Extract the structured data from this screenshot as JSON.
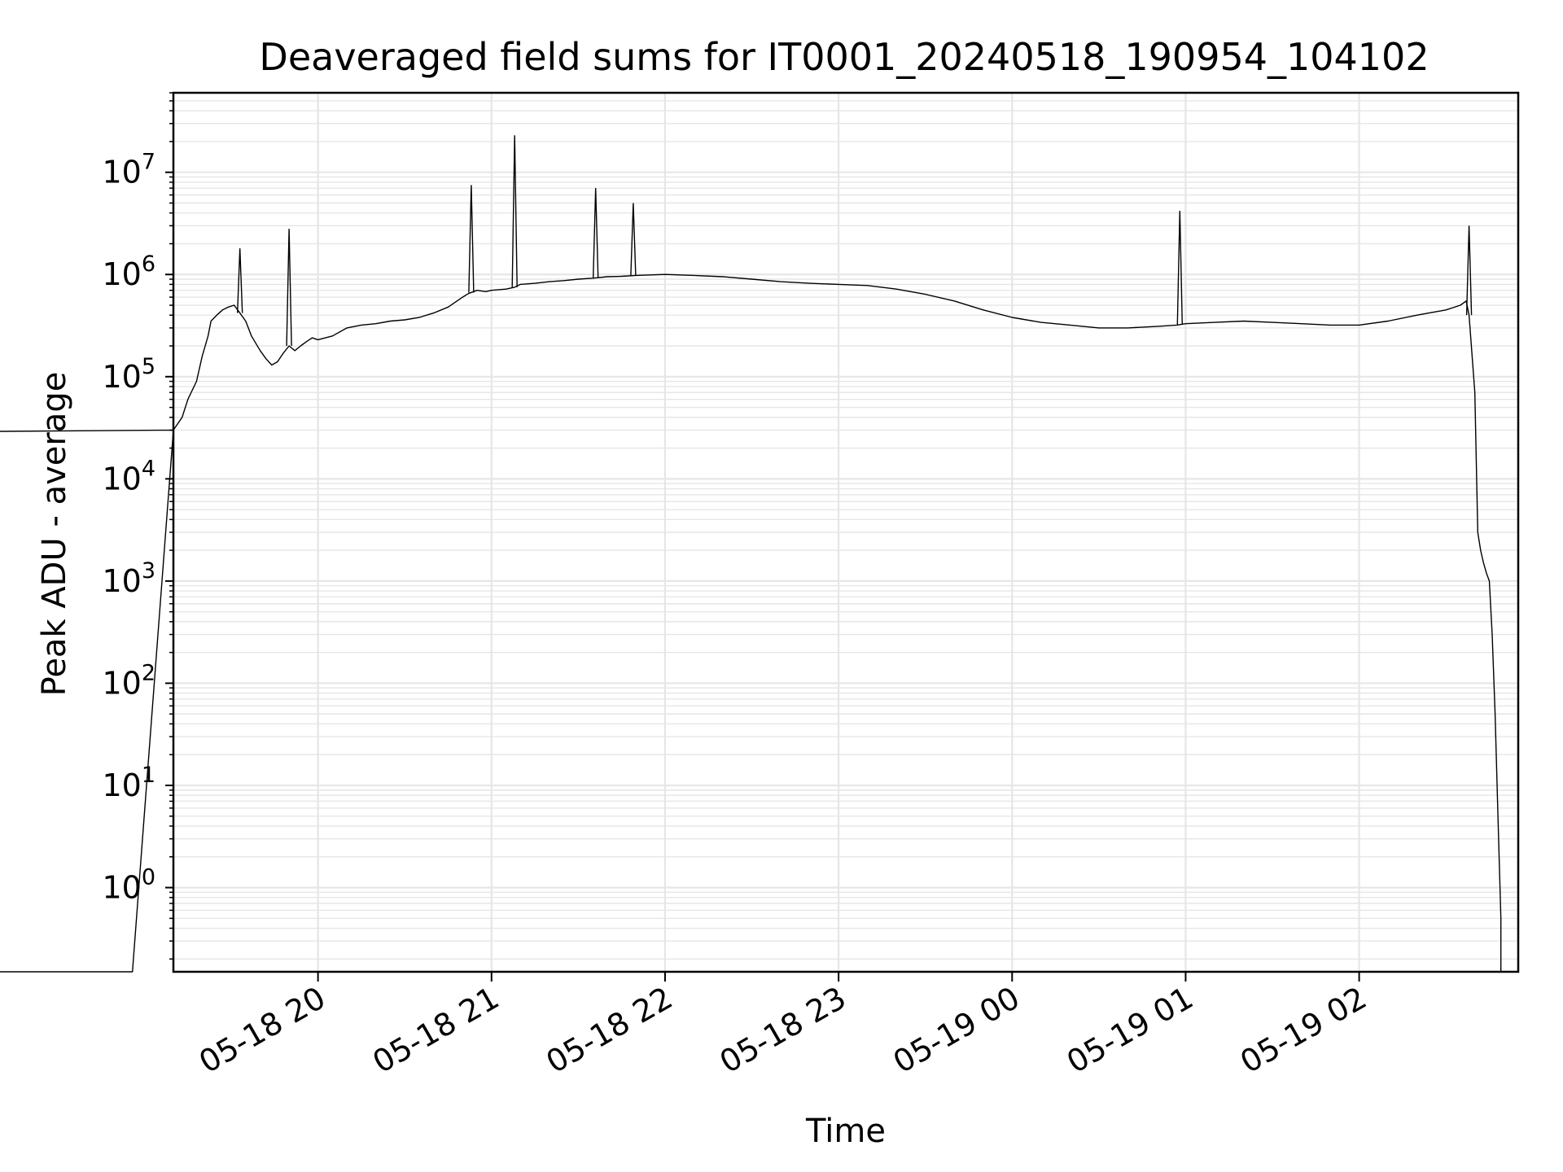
{
  "chart_data": {
    "type": "line",
    "title": "Deaveraged field sums for IT0001_20240518_190954_104102",
    "xlabel": "Time",
    "ylabel": "Peak ADU - average",
    "yscale": "log",
    "grid": "on",
    "line_color": "#000000",
    "grid_color": "#e6e6e6",
    "x_axis": {
      "range": [
        "05-18 19:10",
        "05-19 02:55"
      ],
      "ticks": [
        "05-18 20:00",
        "05-18 21:00",
        "05-18 22:00",
        "05-18 23:00",
        "05-19 00:00",
        "05-19 01:00",
        "05-19 02:00"
      ],
      "tick_labels": [
        "05-18 20",
        "05-18 21",
        "05-18 22",
        "05-18 23",
        "05-19 00",
        "05-19 01",
        "05-19 02"
      ]
    },
    "y_axis": {
      "range": [
        0.15,
        60000000
      ],
      "ticks": [
        1,
        10,
        100,
        1000,
        10000,
        100000,
        1000000,
        10000000
      ],
      "tick_labels": [
        {
          "base": "10",
          "exp": "0"
        },
        {
          "base": "10",
          "exp": "1"
        },
        {
          "base": "10",
          "exp": "2"
        },
        {
          "base": "10",
          "exp": "3"
        },
        {
          "base": "10",
          "exp": "4"
        },
        {
          "base": "10",
          "exp": "5"
        },
        {
          "base": "10",
          "exp": "6"
        },
        {
          "base": "10",
          "exp": "7"
        }
      ]
    },
    "series": [
      {
        "x": [
          "05-18 19:10",
          "05-18 19:13",
          "05-18 19:15",
          "05-18 19:18",
          "05-18 19:20",
          "05-18 19:22",
          "05-18 19:23",
          "05-18 19:25",
          "05-18 19:27",
          "05-18 19:29",
          "05-18 19:31",
          "05-18 19:33",
          "05-18 19:35",
          "05-18 19:37",
          "05-18 19:40",
          "05-18 19:42",
          "05-18 19:44",
          "05-18 19:46",
          "05-18 19:48",
          "05-18 19:50",
          "05-18 19:52",
          "05-18 19:54",
          "05-18 19:56",
          "05-18 19:58",
          "05-18 20:00",
          "05-18 20:05",
          "05-18 20:10",
          "05-18 20:15",
          "05-18 20:20",
          "05-18 20:25",
          "05-18 20:30",
          "05-18 20:35",
          "05-18 20:40",
          "05-18 20:45",
          "05-18 20:50",
          "05-18 20:52",
          "05-18 20:55",
          "05-18 20:58",
          "05-18 21:00",
          "05-18 21:05",
          "05-18 21:08",
          "05-18 21:10",
          "05-18 21:15",
          "05-18 21:20",
          "05-18 21:25",
          "05-18 21:30",
          "05-18 21:35",
          "05-18 21:40",
          "05-18 21:45",
          "05-18 21:50",
          "05-18 22:00",
          "05-18 22:10",
          "05-18 22:20",
          "05-18 22:30",
          "05-18 22:40",
          "05-18 22:50",
          "05-18 23:00",
          "05-18 23:10",
          "05-18 23:20",
          "05-18 23:30",
          "05-18 23:40",
          "05-18 23:50",
          "05-19 00:00",
          "05-19 00:10",
          "05-19 00:20",
          "05-19 00:30",
          "05-19 00:40",
          "05-19 00:50",
          "05-19 00:57",
          "05-19 01:00",
          "05-19 01:10",
          "05-19 01:20",
          "05-19 01:30",
          "05-19 01:40",
          "05-19 01:50",
          "05-19 02:00",
          "05-19 02:10",
          "05-19 02:20",
          "05-19 02:30",
          "05-19 02:35",
          "05-19 02:37",
          "05-19 02:38",
          "05-19 02:40",
          "05-19 02:41",
          "05-19 02:42",
          "05-19 02:43",
          "05-19 02:44",
          "05-19 02:45",
          "05-19 02:46",
          "05-19 02:47",
          "05-19 02:48",
          "05-19 02:49",
          "05-19 02:49"
        ],
        "y": [
          30000,
          40000,
          60000,
          90000,
          160000,
          250000,
          350000,
          400000,
          450000,
          480000,
          500000,
          420000,
          350000,
          250000,
          180000,
          150000,
          130000,
          140000,
          170000,
          200000,
          180000,
          200000,
          220000,
          240000,
          230000,
          250000,
          300000,
          320000,
          330000,
          350000,
          360000,
          380000,
          420000,
          480000,
          600000,
          650000,
          700000,
          680000,
          700000,
          720000,
          750000,
          800000,
          820000,
          850000,
          870000,
          900000,
          920000,
          950000,
          960000,
          980000,
          1000000,
          980000,
          950000,
          900000,
          850000,
          820000,
          800000,
          780000,
          720000,
          640000,
          550000,
          450000,
          380000,
          340000,
          320000,
          300000,
          300000,
          310000,
          320000,
          330000,
          340000,
          350000,
          340000,
          330000,
          320000,
          320000,
          350000,
          400000,
          450000,
          500000,
          550000,
          400000,
          70000,
          3000,
          2000,
          1500,
          1200,
          1000,
          300,
          50,
          5,
          0.5,
          0.15
        ]
      }
    ],
    "annotations": {
      "spikes": [
        {
          "x": "05-18 19:33",
          "y": 1800000
        },
        {
          "x": "05-18 19:50",
          "y": 2800000
        },
        {
          "x": "05-18 20:53",
          "y": 7500000
        },
        {
          "x": "05-18 21:08",
          "y": 23000000
        },
        {
          "x": "05-18 21:36",
          "y": 7000000
        },
        {
          "x": "05-18 21:49",
          "y": 5000000
        },
        {
          "x": "05-19 00:58",
          "y": 4200000
        },
        {
          "x": "05-19 02:38",
          "y": 3000000
        }
      ]
    }
  }
}
